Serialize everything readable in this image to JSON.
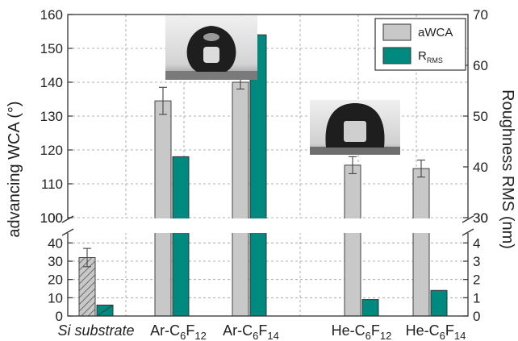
{
  "chart_data": {
    "type": "bar",
    "categories": [
      {
        "base": "Si substrate",
        "italic": true
      },
      {
        "base": "Ar-C",
        "sub1": "6",
        "mid": "F",
        "sub2": "12"
      },
      {
        "base": "Ar-C",
        "sub1": "6",
        "mid": "F",
        "sub2": "14"
      },
      {
        "base": "He-C",
        "sub1": "6",
        "mid": "F",
        "sub2": "12"
      },
      {
        "base": "He-C",
        "sub1": "6",
        "mid": "F",
        "sub2": "14"
      }
    ],
    "series": [
      {
        "name": "aWCA",
        "axis": "left",
        "color": "#c8c8c8",
        "values": [
          32,
          134.5,
          140,
          115.5,
          114.5
        ],
        "errors": [
          5,
          4,
          2,
          2.5,
          2.5
        ],
        "hatched_first": true
      },
      {
        "name": "R",
        "name_sub": "RMS",
        "axis": "right",
        "color": "#00897e",
        "values": [
          0.6,
          42,
          66,
          0.9,
          1.4
        ]
      }
    ],
    "ylabel_left": "advancing WCA (°)",
    "ylabel_right": "Roughness RMS (nm)",
    "left_axis": {
      "lower": {
        "range": [
          0,
          45
        ],
        "ticks": [
          "0",
          "10",
          "20",
          "30",
          "40"
        ],
        "values": [
          0,
          10,
          20,
          30,
          40
        ]
      },
      "upper": {
        "range": [
          100,
          160
        ],
        "ticks": [
          "100",
          "110",
          "120",
          "130",
          "140",
          "150",
          "160"
        ],
        "values": [
          100,
          110,
          120,
          130,
          140,
          150,
          160
        ]
      }
    },
    "right_axis": {
      "lower": {
        "range": [
          0,
          4.5
        ],
        "ticks": [
          "0",
          "1",
          "2",
          "3",
          "4"
        ],
        "values": [
          0,
          1,
          2,
          3,
          4
        ]
      },
      "upper": {
        "range": [
          30,
          70
        ],
        "ticks": [
          "30",
          "40",
          "50",
          "60",
          "70"
        ],
        "values": [
          30,
          40,
          50,
          60,
          70
        ]
      }
    },
    "broken_axis": true,
    "grid": true,
    "legend_position": "top-right",
    "insets": [
      "droplet-image-ar",
      "droplet-image-he"
    ]
  }
}
